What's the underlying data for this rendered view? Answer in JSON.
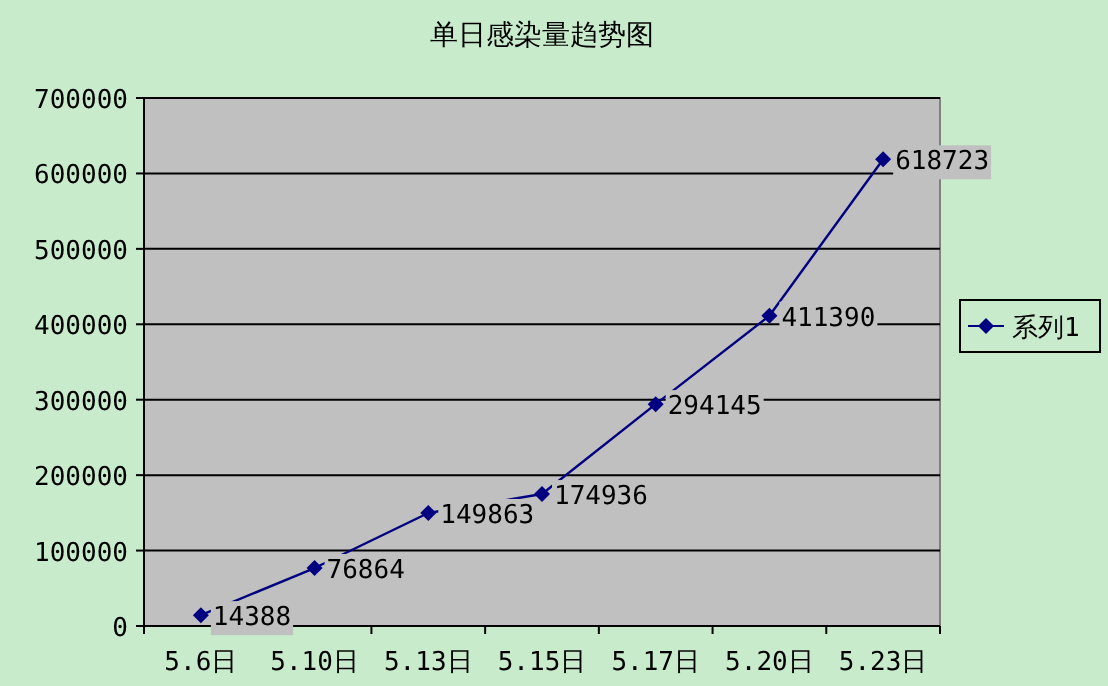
{
  "chart_data": {
    "type": "line",
    "title": "单日感染量趋势图",
    "categories": [
      "5.6日",
      "5.10日",
      "5.13日",
      "5.15日",
      "5.17日",
      "5.20日",
      "5.23日"
    ],
    "series": [
      {
        "name": "系列1",
        "color": "#000080",
        "values": [
          14388,
          76864,
          149863,
          174936,
          294145,
          411390,
          618723
        ]
      }
    ],
    "ylim": [
      0,
      700000
    ],
    "yticks": [
      0,
      100000,
      200000,
      300000,
      400000,
      500000,
      600000,
      700000
    ],
    "grid": "y",
    "legend": "right",
    "marker": "diamond",
    "data_labels": true
  }
}
